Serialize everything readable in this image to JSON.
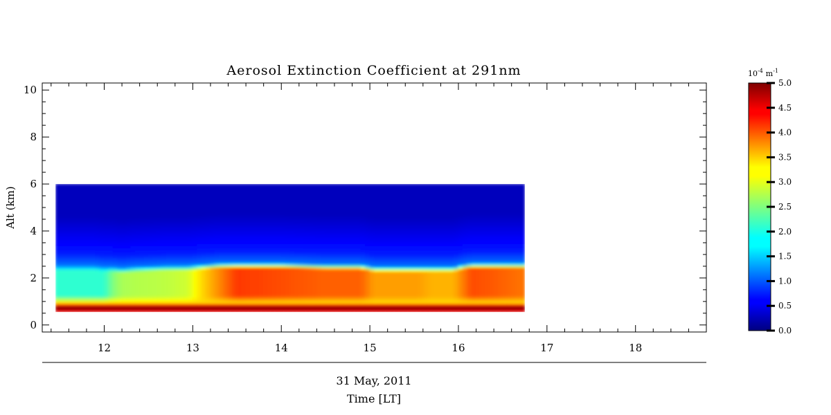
{
  "chart_data": {
    "type": "heatmap",
    "title": "Aerosol Extinction Coefficient at 291nm",
    "ylabel": "Alt (km)",
    "xlabel_date": "31 May, 2011",
    "xlabel": "Time [LT]",
    "xlim": [
      11.3,
      18.8
    ],
    "ylim": [
      -0.3,
      10.3
    ],
    "x_ticks": [
      12,
      13,
      14,
      15,
      16,
      17,
      18
    ],
    "x_tick_labels": [
      "12",
      "13",
      "14",
      "15",
      "16",
      "17",
      "18"
    ],
    "y_ticks": [
      0,
      2,
      4,
      6,
      8,
      10
    ],
    "y_tick_labels": [
      "0",
      "2",
      "4",
      "6",
      "8",
      "10"
    ],
    "data_x_range": [
      11.45,
      16.75
    ],
    "data_y_range": [
      0.55,
      6.0
    ],
    "colormap": "jet",
    "colorbar": {
      "unit_label": "10",
      "unit_exponent": "-4",
      "unit_suffix": "m",
      "unit_suffix_exponent": "-1",
      "range": [
        0.0,
        5.0
      ],
      "ticks": [
        0.0,
        0.5,
        1.0,
        1.5,
        2.0,
        2.5,
        3.0,
        3.5,
        4.0,
        4.5,
        5.0
      ],
      "tick_labels": [
        "0.0",
        "0.5",
        "1.0",
        "1.5",
        "2.0",
        "2.5",
        "3.0",
        "3.5",
        "4.0",
        "4.5",
        "5.0"
      ]
    },
    "time_axis": [
      11.45,
      11.9,
      12.0,
      12.1,
      12.2,
      12.35,
      12.7,
      12.95,
      13.1,
      13.3,
      13.5,
      14.0,
      14.5,
      14.9,
      15.05,
      15.3,
      15.55,
      15.7,
      15.95,
      16.05,
      16.15,
      16.35,
      16.75
    ],
    "boundary_layer_top_km": [
      2.45,
      2.45,
      2.4,
      2.4,
      2.35,
      2.4,
      2.45,
      2.45,
      2.5,
      2.55,
      2.55,
      2.55,
      2.5,
      2.5,
      2.4,
      2.4,
      2.4,
      2.4,
      2.4,
      2.5,
      2.55,
      2.55,
      2.55
    ],
    "boundary_layer_mean_extinction": [
      2.1,
      2.1,
      2.1,
      2.5,
      2.7,
      2.75,
      2.8,
      2.9,
      3.3,
      3.7,
      4.1,
      4.0,
      3.9,
      3.9,
      3.6,
      3.6,
      3.6,
      3.5,
      3.5,
      3.75,
      4.0,
      3.95,
      3.8
    ],
    "surface_peak_extinction": 5.0,
    "free_troposphere_extinction": 0.3
  }
}
